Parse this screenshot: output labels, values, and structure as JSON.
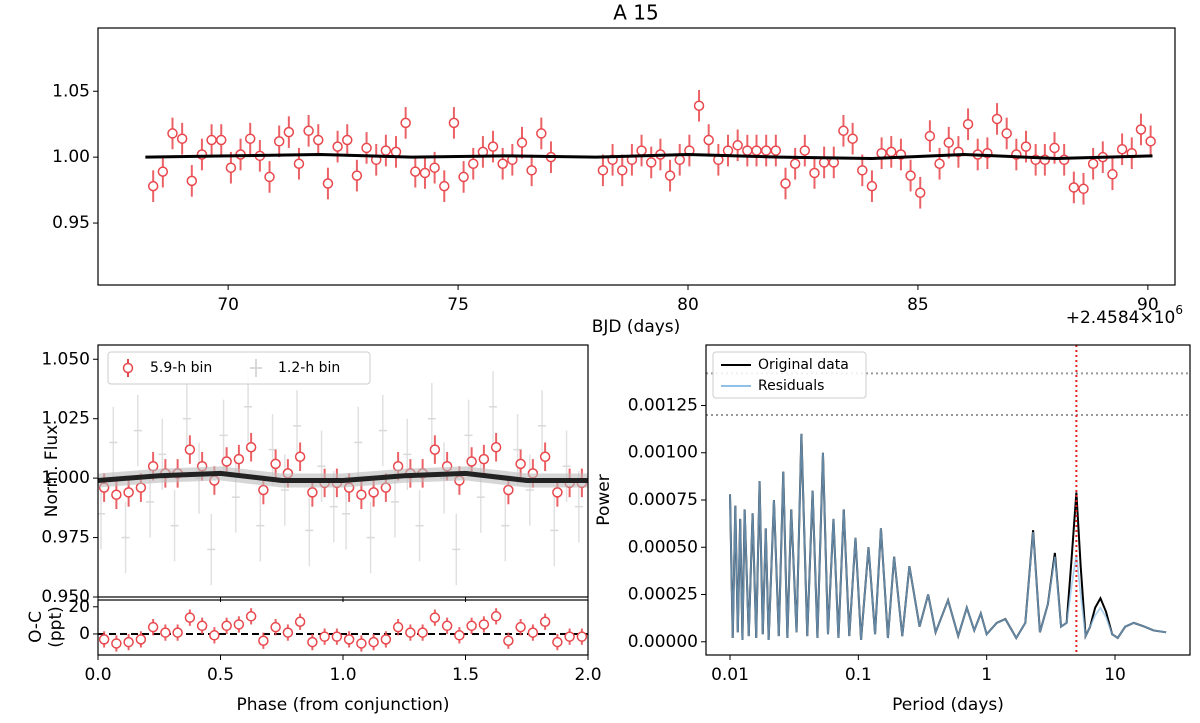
{
  "chart_data": [
    {
      "type": "errorbar",
      "title": "A 15",
      "xlabel": "BJD (days)",
      "offset_label": "+2.4584×10",
      "offset_exponent": "6",
      "xlim": [
        67.17,
        90.59
      ],
      "ylim": [
        0.903,
        1.098
      ],
      "xticks": [
        70,
        75,
        80,
        85,
        90
      ],
      "yticks": [
        {
          "value": 0.95,
          "label": "0.95"
        },
        {
          "value": 1.0,
          "label": "1.00"
        },
        {
          "value": 1.05,
          "label": "1.05"
        }
      ],
      "series": [
        {
          "color": "#e8474c",
          "yerr": 0.012,
          "x": [
            68.37,
            68.58,
            68.79,
            69.0,
            69.21,
            69.43,
            69.64,
            69.85,
            70.06,
            70.27,
            70.48,
            70.69,
            70.9,
            71.11,
            71.32,
            71.54,
            71.75,
            71.96,
            72.17,
            72.38,
            72.59,
            72.8,
            73.01,
            73.22,
            73.43,
            73.65,
            73.86,
            74.07,
            74.28,
            74.49,
            74.7,
            74.91,
            75.12,
            75.33,
            75.54,
            75.76,
            75.97,
            76.18,
            76.39,
            76.6,
            76.81,
            77.02,
            78.15,
            78.36,
            78.57,
            78.78,
            78.99,
            79.2,
            79.4,
            79.61,
            79.82,
            80.03,
            80.24,
            80.45,
            80.66,
            80.87,
            81.08,
            81.29,
            81.49,
            81.7,
            81.91,
            82.12,
            82.33,
            82.54,
            82.75,
            82.96,
            83.17,
            83.38,
            83.58,
            83.79,
            84.0,
            84.21,
            84.42,
            84.63,
            84.84,
            85.05,
            85.26,
            85.47,
            85.67,
            85.88,
            86.09,
            86.3,
            86.51,
            86.72,
            86.93,
            87.14,
            87.35,
            87.56,
            87.76,
            87.97,
            88.18,
            88.39,
            88.6,
            88.81,
            89.02,
            89.23,
            89.44,
            89.65,
            89.85,
            90.06
          ],
          "values": [
            0.978,
            0.989,
            1.018,
            1.014,
            0.982,
            1.002,
            1.013,
            1.013,
            0.992,
            1.002,
            1.014,
            1.001,
            0.985,
            1.012,
            1.019,
            0.995,
            1.02,
            1.013,
            0.98,
            1.008,
            1.013,
            0.986,
            1.007,
            0.998,
            1.005,
            1.004,
            1.026,
            0.989,
            0.988,
            0.992,
            0.978,
            1.026,
            0.985,
            0.995,
            1.004,
            1.008,
            0.995,
            0.998,
            1.011,
            0.99,
            1.018,
            1.0,
            0.99,
            0.998,
            0.99,
            0.998,
            1.005,
            0.996,
            1.002,
            0.986,
            0.998,
            1.005,
            1.039,
            1.013,
            0.998,
            1.005,
            1.009,
            1.005,
            1.005,
            1.005,
            1.005,
            0.98,
            0.995,
            1.005,
            0.988,
            0.996,
            0.996,
            1.02,
            1.014,
            0.99,
            0.978,
            1.003,
            1.004,
            1.002,
            0.986,
            0.973,
            1.016,
            0.995,
            1.011,
            1.004,
            1.025,
            1.002,
            1.003,
            1.029,
            1.018,
            1.002,
            1.008,
            0.998,
            0.998,
            1.007,
            0.998,
            0.977,
            0.976,
            0.995,
            1.0,
            0.987,
            1.006,
            1.003,
            1.021,
            1.012
          ]
        }
      ],
      "model": {
        "color": "#000000",
        "x": [
          68.2,
          70,
          72,
          74,
          76,
          78,
          80,
          82,
          84,
          86,
          88,
          90.1
        ],
        "values": [
          1.0,
          1.001,
          1.002,
          1.0,
          1.001,
          1.0,
          1.002,
          1.0,
          0.999,
          1.002,
          0.999,
          1.001
        ]
      }
    },
    {
      "type": "errorbar",
      "ylabel": "Norm. Flux",
      "xlim": [
        0,
        2
      ],
      "ylim": [
        0.95,
        1.056
      ],
      "yticks": [
        {
          "value": 0.95,
          "label": "0.950"
        },
        0.975,
        {
          "value": 1.0,
          "label": "1.000"
        },
        1.025,
        {
          "value": 1.05,
          "label": "1.050"
        }
      ],
      "series": [
        {
          "name": "5.9-h bin",
          "color": "#e8474c",
          "yerr": 0.006,
          "x": [
            0.025,
            0.075,
            0.125,
            0.175,
            0.225,
            0.275,
            0.325,
            0.375,
            0.425,
            0.475,
            0.525,
            0.575,
            0.625,
            0.675,
            0.725,
            0.775,
            0.825,
            0.875,
            0.925,
            0.975,
            1.025,
            1.075,
            1.125,
            1.175,
            1.225,
            1.275,
            1.325,
            1.375,
            1.425,
            1.475,
            1.525,
            1.575,
            1.625,
            1.675,
            1.725,
            1.775,
            1.825,
            1.875,
            1.925,
            1.975
          ],
          "values": [
            0.996,
            0.993,
            0.994,
            0.996,
            1.005,
            1.002,
            1.002,
            1.012,
            1.005,
            0.999,
            1.007,
            1.008,
            1.013,
            0.995,
            1.006,
            1.002,
            1.009,
            0.994,
            0.998,
            0.998,
            0.996,
            0.993,
            0.994,
            0.996,
            1.005,
            1.002,
            1.002,
            1.012,
            1.005,
            0.999,
            1.007,
            1.008,
            1.013,
            0.995,
            1.006,
            1.002,
            1.009,
            0.994,
            0.998,
            0.998
          ]
        },
        {
          "name": "1.2-h bin",
          "color": "#d9d9d9",
          "yerr": 0.015,
          "x": [
            0.0125,
            0.0625,
            0.1125,
            0.1625,
            0.2125,
            0.2625,
            0.3125,
            0.3625,
            0.4125,
            0.4625,
            0.5125,
            0.5625,
            0.6125,
            0.6625,
            0.7125,
            0.7625,
            0.8125,
            0.8625,
            0.9125,
            0.9625,
            1.0125,
            1.0625,
            1.1125,
            1.1625,
            1.2125,
            1.2625,
            1.3125,
            1.3625,
            1.4125,
            1.4625,
            1.5125,
            1.5625,
            1.6125,
            1.6625,
            1.7125,
            1.7625,
            1.8125,
            1.8625,
            1.9125,
            1.9625
          ],
          "values": [
            0.985,
            1.015,
            0.975,
            1.02,
            0.99,
            1.01,
            0.98,
            1.025,
            1.0,
            0.97,
            1.018,
            0.992,
            1.03,
            0.98,
            1.012,
            0.995,
            1.022,
            0.978,
            1.005,
            0.988,
            0.985,
            1.015,
            0.975,
            1.02,
            0.99,
            1.01,
            0.98,
            1.025,
            1.0,
            0.97,
            1.018,
            0.992,
            1.03,
            0.98,
            1.012,
            0.995,
            1.022,
            0.978,
            1.005,
            0.988
          ]
        }
      ],
      "model": {
        "color": "#222222",
        "x": [
          0,
          0.25,
          0.5,
          0.75,
          1.0,
          1.25,
          1.5,
          1.75,
          2.0
        ],
        "values": [
          0.999,
          1.001,
          1.002,
          0.999,
          0.999,
          1.001,
          1.002,
          0.999,
          0.999
        ]
      }
    },
    {
      "type": "errorbar",
      "ylabel": [
        "O-C",
        "(ppt)"
      ],
      "xlabel": "Phase (from conjunction)",
      "xlim": [
        0,
        2
      ],
      "ylim": [
        -15.5,
        25
      ],
      "xticks": [
        {
          "value": 0,
          "label": "0.0"
        },
        0.5,
        {
          "value": 1,
          "label": "1.0"
        },
        1.5,
        {
          "value": 2,
          "label": "2.0"
        }
      ],
      "yticks": [
        0,
        20
      ],
      "hline": 0,
      "series": [
        {
          "color": "#e8474c",
          "yerr": 6,
          "x": [
            0.025,
            0.075,
            0.125,
            0.175,
            0.225,
            0.275,
            0.325,
            0.375,
            0.425,
            0.475,
            0.525,
            0.575,
            0.625,
            0.675,
            0.725,
            0.775,
            0.825,
            0.875,
            0.925,
            0.975,
            1.025,
            1.075,
            1.125,
            1.175,
            1.225,
            1.275,
            1.325,
            1.375,
            1.425,
            1.475,
            1.525,
            1.575,
            1.625,
            1.675,
            1.725,
            1.775,
            1.825,
            1.875,
            1.925,
            1.975
          ],
          "values": [
            -4,
            -7,
            -6,
            -4,
            5,
            1,
            1,
            12,
            6,
            -1,
            6,
            7,
            13,
            -5,
            5,
            1,
            9,
            -6,
            -2,
            -2,
            -4,
            -7,
            -6,
            -4,
            5,
            1,
            1,
            12,
            6,
            -1,
            6,
            7,
            13,
            -5,
            5,
            1,
            9,
            -6,
            -2,
            -2
          ]
        }
      ]
    },
    {
      "type": "line",
      "log_x": true,
      "xlabel": "Period (days)",
      "ylabel": "Power",
      "xlim": [
        0.0065,
        38.4
      ],
      "ylim": [
        -7e-05,
        0.00157
      ],
      "xticks": [
        0.01,
        0.1,
        1,
        10
      ],
      "yticks": [
        {
          "value": 0,
          "label": "0.00000"
        },
        {
          "value": 0.00025,
          "label": "0.00025"
        },
        {
          "value": 0.0005,
          "label": "0.00050"
        },
        {
          "value": 0.00075,
          "label": "0.00075"
        },
        {
          "value": 0.001,
          "label": "0.00100"
        },
        {
          "value": 0.00125,
          "label": "0.00125"
        }
      ],
      "hlines": [
        0.00142,
        0.0012
      ],
      "vline": 5.0,
      "x": [
        0.01,
        0.0105,
        0.011,
        0.0115,
        0.012,
        0.0125,
        0.013,
        0.014,
        0.015,
        0.016,
        0.017,
        0.018,
        0.019,
        0.02,
        0.022,
        0.024,
        0.026,
        0.028,
        0.03,
        0.033,
        0.036,
        0.04,
        0.044,
        0.048,
        0.053,
        0.058,
        0.064,
        0.07,
        0.077,
        0.085,
        0.095,
        0.105,
        0.12,
        0.135,
        0.15,
        0.17,
        0.19,
        0.22,
        0.25,
        0.3,
        0.35,
        0.4,
        0.5,
        0.6,
        0.7,
        0.8,
        0.9,
        1.0,
        1.2,
        1.4,
        1.7,
        2.0,
        2.3,
        2.6,
        3.0,
        3.4,
        3.8,
        4.2,
        4.6,
        5.0,
        5.4,
        5.9,
        6.4,
        7.0,
        7.7,
        8.5,
        9.5,
        10.5,
        12,
        14,
        17,
        20,
        25
      ],
      "series": [
        {
          "name": "Original data",
          "color": "#000000",
          "values": [
            0.00078,
            2e-05,
            0.00072,
            5e-05,
            0.00065,
            1e-05,
            0.0007,
            3e-05,
            0.00068,
            2e-05,
            0.00085,
            4e-05,
            0.0006,
            1e-05,
            0.00075,
            3e-05,
            0.0009,
            2e-05,
            0.0007,
            5e-05,
            0.0011,
            3e-05,
            0.0008,
            2e-05,
            0.001,
            4e-05,
            0.00065,
            2e-05,
            0.0007,
            3e-05,
            0.00055,
            1e-05,
            0.0005,
            4e-05,
            0.0006,
            2e-05,
            0.00045,
            3e-05,
            0.0004,
            8e-05,
            0.00025,
            5e-05,
            0.00022,
            3e-05,
            0.00018,
            6e-05,
            0.00015,
            4e-05,
            0.0001,
            0.00012,
            2e-05,
            0.0001,
            0.00059,
            5e-05,
            0.0002,
            0.00047,
            8e-05,
            0.0001,
            0.00045,
            0.00079,
            0.0004,
            3e-05,
            8e-05,
            0.00018,
            0.00023,
            0.00016,
            4e-05,
            2e-05,
            8e-05,
            0.0001,
            8e-05,
            6e-05,
            5e-05
          ]
        },
        {
          "name": "Residuals",
          "color": "#8fc0ea",
          "values": [
            0.00078,
            2e-05,
            0.00072,
            5e-05,
            0.00065,
            1e-05,
            0.0007,
            3e-05,
            0.00068,
            2e-05,
            0.00085,
            4e-05,
            0.0006,
            1e-05,
            0.00075,
            3e-05,
            0.0009,
            2e-05,
            0.0007,
            5e-05,
            0.0011,
            3e-05,
            0.0008,
            2e-05,
            0.001,
            4e-05,
            0.00065,
            2e-05,
            0.0007,
            3e-05,
            0.00055,
            1e-05,
            0.0005,
            4e-05,
            0.0006,
            2e-05,
            0.00045,
            3e-05,
            0.0004,
            8e-05,
            0.00025,
            5e-05,
            0.00022,
            3e-05,
            0.00018,
            6e-05,
            0.00015,
            4e-05,
            0.0001,
            0.00012,
            2e-05,
            0.0001,
            0.00058,
            5e-05,
            0.0002,
            0.00045,
            8e-05,
            0.0001,
            0.0003,
            0.00046,
            0.00025,
            3e-05,
            8e-05,
            0.00014,
            0.00018,
            0.00013,
            4e-05,
            2e-05,
            8e-05,
            0.0001,
            8e-05,
            6e-05,
            5e-05
          ]
        }
      ]
    }
  ]
}
